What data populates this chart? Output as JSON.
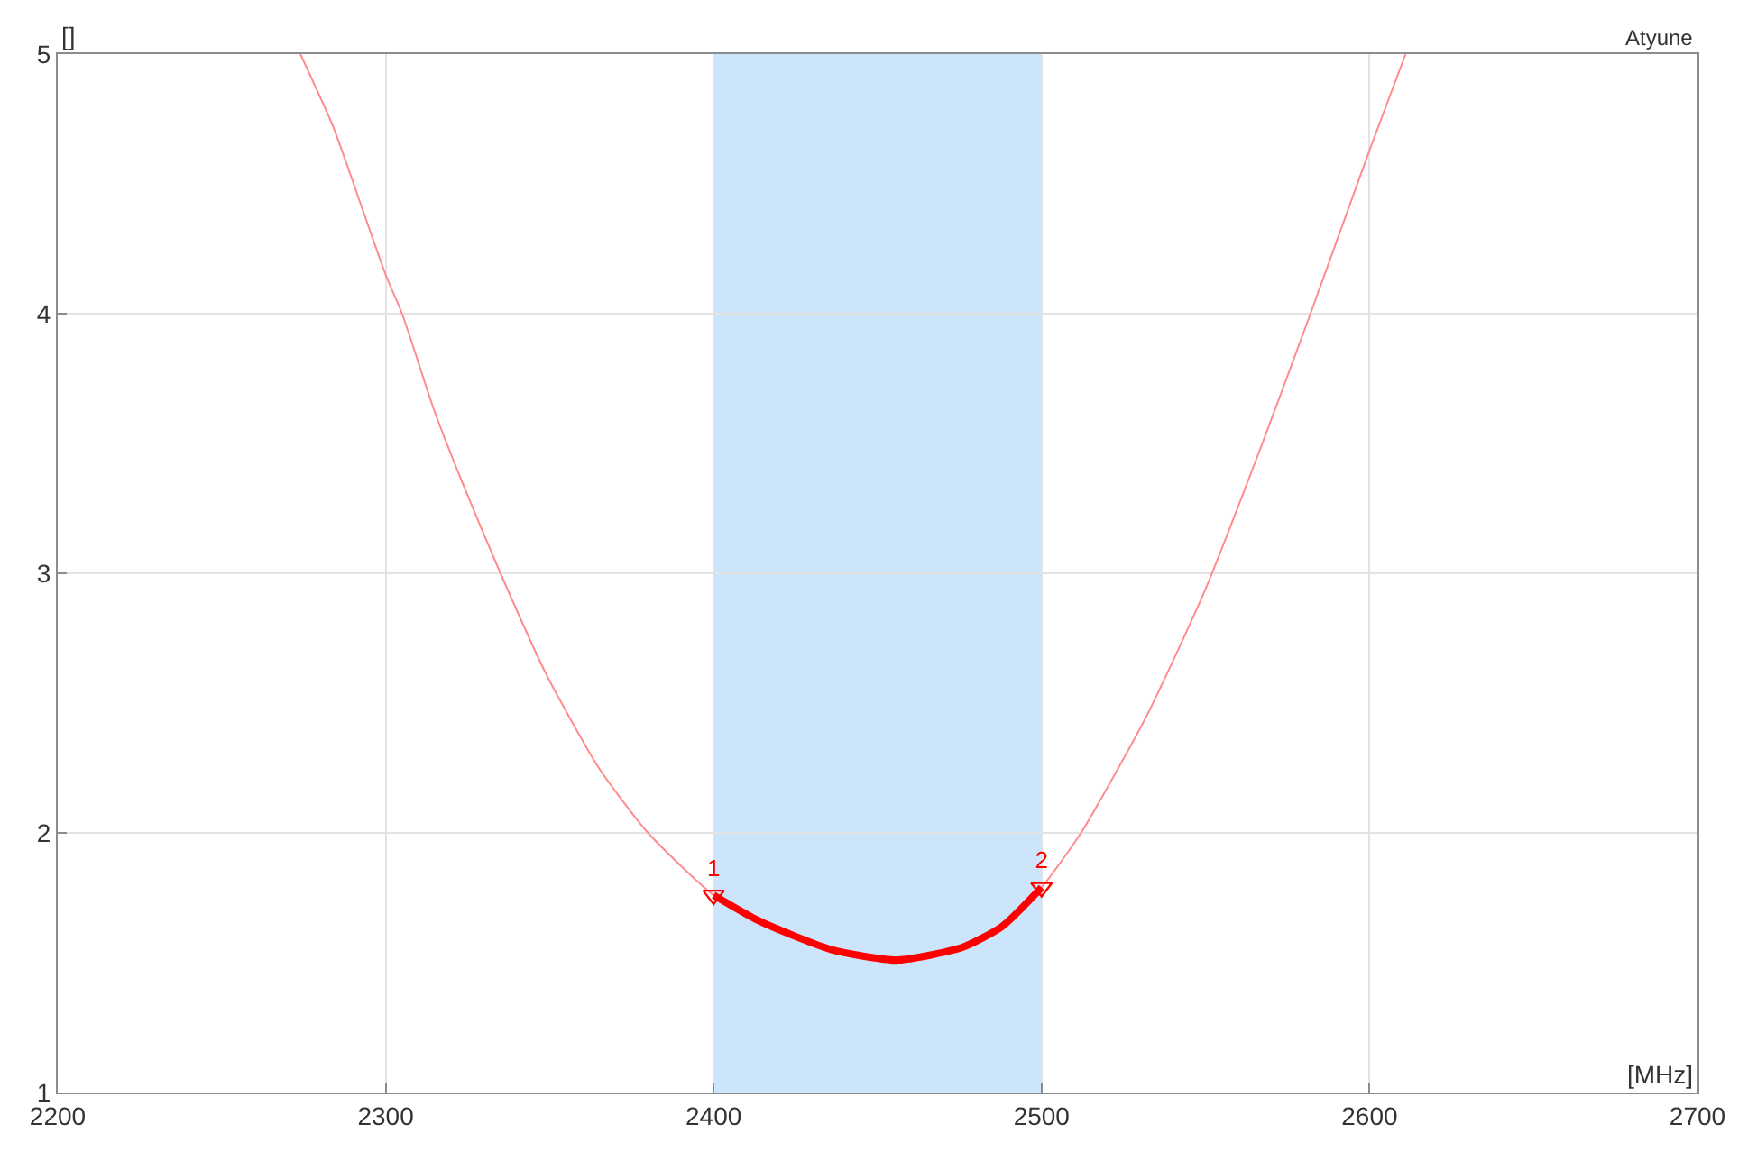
{
  "chart_data": {
    "type": "line",
    "title": "Atyune",
    "xlabel": "[MHz]",
    "ylabel": "[]",
    "series": [
      {
        "color": "#ff8c8c",
        "x": [
          2274,
          2284,
          2293,
          2300,
          2305,
          2315,
          2324,
          2335,
          2349,
          2365,
          2380,
          2400,
          2414,
          2436,
          2456,
          2476,
          2488,
          2500,
          2512,
          2532,
          2550,
          2567,
          2582,
          2600,
          2611
        ],
        "values": [
          5.0,
          4.72,
          4.4,
          4.15,
          4.0,
          3.62,
          3.33,
          3.0,
          2.61,
          2.25,
          2.0,
          1.76,
          1.66,
          1.55,
          1.51,
          1.56,
          1.64,
          1.79,
          2.0,
          2.45,
          2.94,
          3.49,
          4.0,
          4.63,
          5.0
        ]
      },
      {
        "color": "#ff0000",
        "x": [
          2400,
          2414,
          2436,
          2456,
          2476,
          2488,
          2500
        ],
        "values": [
          1.76,
          1.66,
          1.55,
          1.51,
          1.56,
          1.64,
          1.79
        ]
      }
    ],
    "annotations": [
      {
        "text": "1",
        "x": 2400,
        "y": 1.76
      },
      {
        "text": "2",
        "x": 2500,
        "y": 1.79
      }
    ],
    "bands": [
      {
        "axis": "x",
        "from": 2400,
        "to": 2500,
        "color": "#cce5fb"
      }
    ],
    "xlim": [
      2200,
      2700
    ],
    "xticks": [
      2200,
      2300,
      2400,
      2500,
      2600,
      2700
    ],
    "ylim": [
      1,
      5
    ],
    "yticks": [
      1,
      2,
      3,
      4,
      5
    ],
    "grid": true,
    "line_style": "solid",
    "marker": "none"
  }
}
